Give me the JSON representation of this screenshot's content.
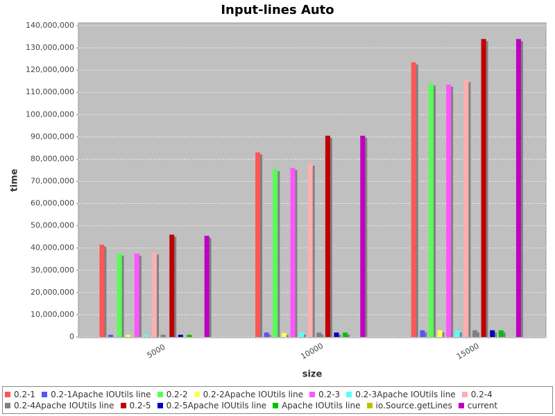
{
  "chart_data": {
    "type": "bar",
    "title": "Input-lines Auto",
    "x_label": "size",
    "y_label": "time",
    "categories": [
      "5000",
      "10000",
      "15000"
    ],
    "series": [
      {
        "name": "0.2-1",
        "color": "#ff5555",
        "values": [
          41500000,
          83000000,
          123500000
        ]
      },
      {
        "name": "0.2-1Apache IOUtils line",
        "color": "#5555ff",
        "values": [
          1000000,
          2000000,
          3000000
        ]
      },
      {
        "name": "0.2-2",
        "color": "#55ff55",
        "values": [
          37500000,
          75500000,
          114000000
        ]
      },
      {
        "name": "0.2-2Apache IOUtils line",
        "color": "#ffff55",
        "values": [
          1000000,
          1800000,
          3000000
        ]
      },
      {
        "name": "0.2-3",
        "color": "#ff55ff",
        "values": [
          37500000,
          76000000,
          113500000
        ]
      },
      {
        "name": "0.2-3Apache IOUtils line",
        "color": "#55ffff",
        "values": [
          1000000,
          2000000,
          3000000
        ]
      },
      {
        "name": "0.2-4",
        "color": "#ffafaf",
        "values": [
          38000000,
          78000000,
          115500000
        ]
      },
      {
        "name": "0.2-4Apache IOUtils line",
        "color": "#808080",
        "values": [
          1000000,
          2000000,
          3000000
        ]
      },
      {
        "name": "0.2-5",
        "color": "#c00000",
        "values": [
          46000000,
          90500000,
          134000000
        ]
      },
      {
        "name": "0.2-5Apache IOUtils line",
        "color": "#0000c0",
        "values": [
          1000000,
          2000000,
          3000000
        ]
      },
      {
        "name": "Apache IOUtils line",
        "color": "#00c000",
        "values": [
          1000000,
          2000000,
          3000000
        ]
      },
      {
        "name": "io.Source.getLines",
        "color": "#c0c000",
        "values": [
          0,
          0,
          0
        ]
      },
      {
        "name": "current",
        "color": "#c000c0",
        "values": [
          45500000,
          90500000,
          134000000
        ]
      }
    ],
    "ylim": [
      0,
      140000000
    ],
    "yticks": [
      0,
      {
        "value": 10000000,
        "label": "10,000,000"
      },
      {
        "value": 20000000,
        "label": "20,000,000"
      },
      {
        "value": 30000000,
        "label": "30,000,000"
      },
      {
        "value": 40000000,
        "label": "40,000,000"
      },
      {
        "value": 50000000,
        "label": "50,000,000"
      },
      {
        "value": 60000000,
        "label": "60,000,000"
      },
      {
        "value": 70000000,
        "label": "70,000,000"
      },
      {
        "value": 80000000,
        "label": "80,000,000"
      },
      {
        "value": 90000000,
        "label": "90,000,000"
      },
      {
        "value": 100000000,
        "label": "100,000,000"
      },
      {
        "value": 110000000,
        "label": "110,000,000"
      },
      {
        "value": 120000000,
        "label": "120,000,000"
      },
      {
        "value": 130000000,
        "label": "130,000,000"
      },
      {
        "value": 140000000,
        "label": "140,000,000"
      }
    ],
    "grid": true
  }
}
